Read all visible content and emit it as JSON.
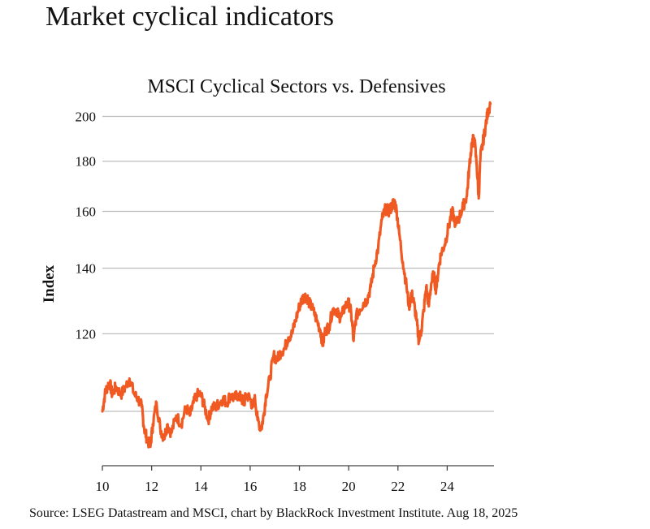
{
  "page": {
    "title": "Market cyclical indicators",
    "source": "Source: LSEG Datastream and MSCI, chart by BlackRock Investment Institute. Aug 18, 2025"
  },
  "chart_data": {
    "type": "line",
    "title": "MSCI Cyclical Sectors vs. Defensives",
    "xlabel": "",
    "ylabel": "Index",
    "x_tick_labels": [
      "10",
      "12",
      "14",
      "16",
      "18",
      "20",
      "22",
      "24"
    ],
    "y_tick_labels": [
      "",
      "120",
      "140",
      "160",
      "180",
      "200"
    ],
    "x_ticks": [
      2010,
      2012,
      2014,
      2016,
      2018,
      2020,
      2022,
      2024
    ],
    "y_ticks": [
      100,
      120,
      140,
      160,
      180,
      200
    ],
    "y_scale": "log",
    "xlim": [
      2010,
      2025.9
    ],
    "ylim": [
      88,
      206
    ],
    "grid": "horizontal",
    "legend": "none",
    "line_color": "#f05a22",
    "series": [
      {
        "name": "",
        "points": [
          [
            2010.0,
            100
          ],
          [
            2010.1,
            104
          ],
          [
            2010.2,
            106
          ],
          [
            2010.3,
            107
          ],
          [
            2010.4,
            104
          ],
          [
            2010.55,
            106
          ],
          [
            2010.75,
            104
          ],
          [
            2010.95,
            106
          ],
          [
            2011.1,
            108
          ],
          [
            2011.3,
            104
          ],
          [
            2011.45,
            103
          ],
          [
            2011.6,
            101
          ],
          [
            2011.7,
            96
          ],
          [
            2011.8,
            94
          ],
          [
            2011.95,
            92
          ],
          [
            2012.05,
            97
          ],
          [
            2012.2,
            102
          ],
          [
            2012.35,
            96
          ],
          [
            2012.5,
            94
          ],
          [
            2012.65,
            97
          ],
          [
            2012.8,
            95
          ],
          [
            2013.0,
            99
          ],
          [
            2013.2,
            97
          ],
          [
            2013.4,
            101
          ],
          [
            2013.55,
            99
          ],
          [
            2013.7,
            102
          ],
          [
            2013.85,
            104
          ],
          [
            2014.0,
            104
          ],
          [
            2014.15,
            101
          ],
          [
            2014.3,
            98
          ],
          [
            2014.45,
            101
          ],
          [
            2014.6,
            101
          ],
          [
            2014.75,
            102
          ],
          [
            2014.9,
            103
          ],
          [
            2015.05,
            102
          ],
          [
            2015.2,
            104
          ],
          [
            2015.35,
            103
          ],
          [
            2015.5,
            104
          ],
          [
            2015.65,
            103
          ],
          [
            2015.75,
            102
          ],
          [
            2015.85,
            104
          ],
          [
            2016.0,
            103
          ],
          [
            2016.1,
            101
          ],
          [
            2016.2,
            103
          ],
          [
            2016.3,
            98
          ],
          [
            2016.45,
            96
          ],
          [
            2016.55,
            99
          ],
          [
            2016.65,
            104
          ],
          [
            2016.8,
            108
          ],
          [
            2016.95,
            114
          ],
          [
            2017.1,
            113
          ],
          [
            2017.25,
            115
          ],
          [
            2017.4,
            116
          ],
          [
            2017.55,
            119
          ],
          [
            2017.7,
            120
          ],
          [
            2017.85,
            124
          ],
          [
            2018.0,
            128
          ],
          [
            2018.1,
            130
          ],
          [
            2018.2,
            131
          ],
          [
            2018.3,
            131
          ],
          [
            2018.4,
            129
          ],
          [
            2018.55,
            127
          ],
          [
            2018.7,
            124
          ],
          [
            2018.85,
            121
          ],
          [
            2018.95,
            117
          ],
          [
            2019.05,
            121
          ],
          [
            2019.2,
            122
          ],
          [
            2019.35,
            127
          ],
          [
            2019.5,
            127
          ],
          [
            2019.6,
            125
          ],
          [
            2019.7,
            125
          ],
          [
            2019.85,
            128
          ],
          [
            2020.0,
            129
          ],
          [
            2020.1,
            126
          ],
          [
            2020.2,
            118
          ],
          [
            2020.3,
            125
          ],
          [
            2020.45,
            127
          ],
          [
            2020.6,
            129
          ],
          [
            2020.75,
            130
          ],
          [
            2020.9,
            134
          ],
          [
            2021.05,
            141
          ],
          [
            2021.2,
            147
          ],
          [
            2021.35,
            157
          ],
          [
            2021.5,
            161
          ],
          [
            2021.65,
            160
          ],
          [
            2021.75,
            162
          ],
          [
            2021.85,
            164
          ],
          [
            2021.95,
            160
          ],
          [
            2022.05,
            152
          ],
          [
            2022.2,
            142
          ],
          [
            2022.35,
            134
          ],
          [
            2022.45,
            128
          ],
          [
            2022.55,
            132
          ],
          [
            2022.65,
            129
          ],
          [
            2022.75,
            124
          ],
          [
            2022.85,
            118
          ],
          [
            2022.95,
            121
          ],
          [
            2023.05,
            127
          ],
          [
            2023.15,
            134
          ],
          [
            2023.25,
            128
          ],
          [
            2023.35,
            135
          ],
          [
            2023.45,
            138
          ],
          [
            2023.55,
            133
          ],
          [
            2023.65,
            140
          ],
          [
            2023.75,
            145
          ],
          [
            2023.9,
            148
          ],
          [
            2024.05,
            154
          ],
          [
            2024.2,
            160
          ],
          [
            2024.35,
            155
          ],
          [
            2024.5,
            158
          ],
          [
            2024.65,
            162
          ],
          [
            2024.8,
            166
          ],
          [
            2024.9,
            178
          ],
          [
            2025.0,
            188
          ],
          [
            2025.1,
            190
          ],
          [
            2025.2,
            178
          ],
          [
            2025.28,
            165
          ],
          [
            2025.35,
            182
          ],
          [
            2025.45,
            188
          ],
          [
            2025.55,
            195
          ],
          [
            2025.65,
            202
          ],
          [
            2025.75,
            206
          ]
        ]
      }
    ]
  }
}
